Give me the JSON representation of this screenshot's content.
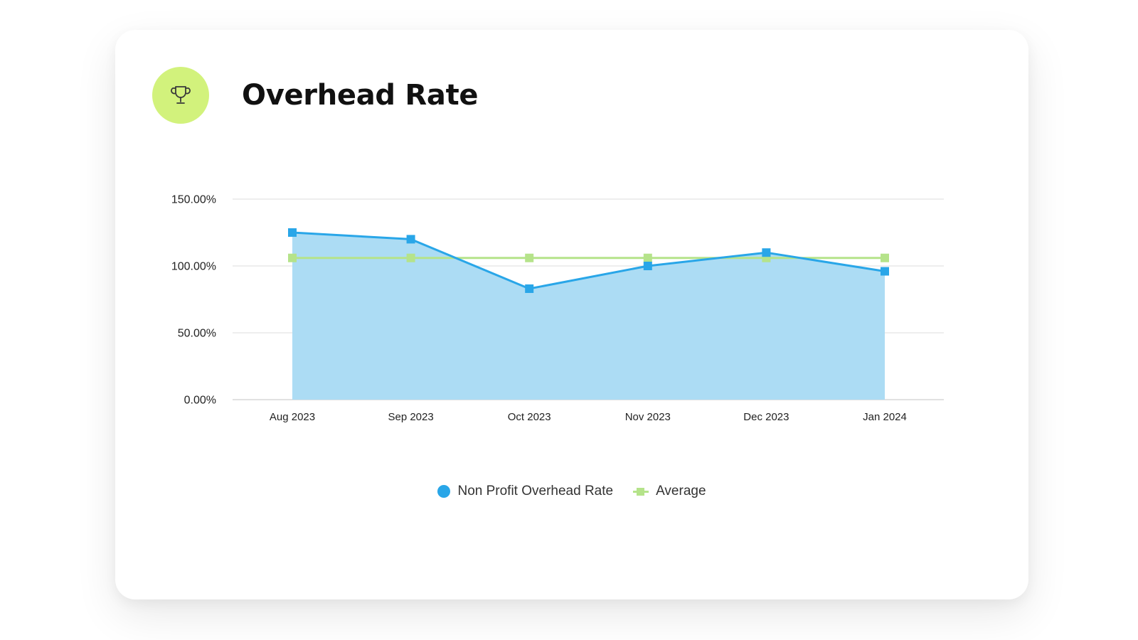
{
  "title": "Overhead Rate",
  "badge": {
    "icon": "trophy-icon",
    "color": "#d2f27c"
  },
  "chart_data": {
    "type": "area",
    "categories": [
      "Aug 2023",
      "Sep 2023",
      "Oct 2023",
      "Nov 2023",
      "Dec 2023",
      "Jan 2024"
    ],
    "series": [
      {
        "name": "Non Profit Overhead Rate",
        "kind": "area",
        "color": "#29a6e8",
        "fill": "#acdcf4",
        "values": [
          125,
          120,
          83,
          100,
          110,
          96
        ]
      },
      {
        "name": "Average",
        "kind": "line",
        "color": "#b5e38a",
        "values": [
          106,
          106,
          106,
          106,
          106,
          106
        ]
      }
    ],
    "yticks": [
      "0.00%",
      "50.00%",
      "100.00%",
      "150.00%"
    ],
    "ylim": [
      0,
      150
    ],
    "grid": true,
    "legend_position": "bottom-center"
  },
  "legend": {
    "series1_label": "Non Profit Overhead Rate",
    "series2_label": "Average"
  }
}
